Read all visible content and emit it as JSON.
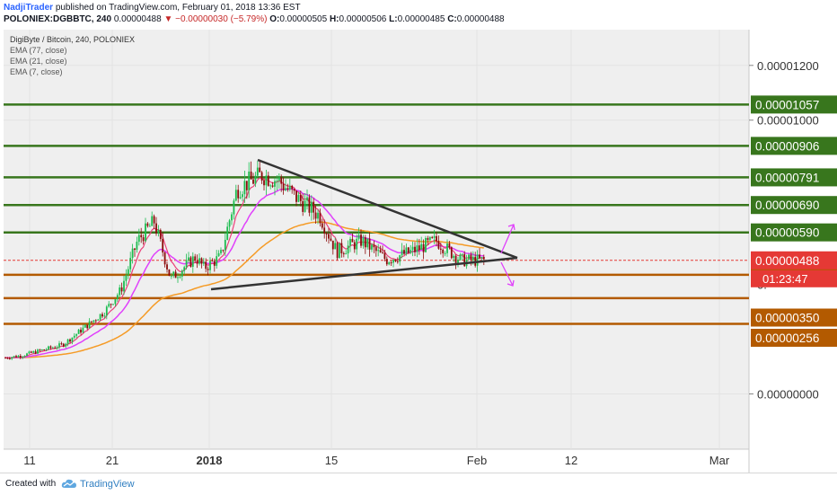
{
  "header": {
    "author": "NadjiTrader",
    "published": "published on TradingView.com, February 01, 2018 13:36 EST",
    "symbol": "POLONIEX:DGBBTC, 240",
    "last": "0.00000488",
    "change": "▼ −0.00000030 (−5.79%)",
    "o_label": "O:",
    "o_value": "0.00000505",
    "h_label": "H:",
    "h_value": "0.00000506",
    "l_label": "L:",
    "l_value": "0.00000485",
    "c_label": "C:",
    "c_value": "0.00000488"
  },
  "legend": {
    "title": "DigiByte / Bitcoin, 240, POLONIEX",
    "ema77": "EMA (77, close)",
    "ema21": "EMA (21, close)",
    "ema7": "EMA (7, close)"
  },
  "footer": {
    "created_with": "Created with",
    "brand": "TradingView"
  },
  "colors": {
    "background": "#efefef",
    "green_level": "#38761d",
    "brown_level": "#b35a00",
    "price_line": "#e53935",
    "ema77": "#f59b26",
    "ema21": "#e040fb",
    "ema7": "#ec407a",
    "trendline": "#333333",
    "up_candle": "#1bbc4f",
    "down_candle": "#8b0a0a",
    "arrows": "#e040fb"
  },
  "chart_data": {
    "type": "candlestick",
    "title": "DigiByte / Bitcoin, 240, POLONIEX",
    "y_axis_ticks": [
      "0.00001200",
      "0.00001000",
      "0.00000000"
    ],
    "x_axis_ticks": [
      "11",
      "21",
      "2018",
      "15",
      "Feb",
      "12",
      "Mar"
    ],
    "horizontal_levels": [
      {
        "label": "0.00001057",
        "value": 1.057e-05,
        "color": "green"
      },
      {
        "label": "0.00000906",
        "value": 9.06e-06,
        "color": "green"
      },
      {
        "label": "0.00000791",
        "value": 7.91e-06,
        "color": "green"
      },
      {
        "label": "0.00000690",
        "value": 6.9e-06,
        "color": "green"
      },
      {
        "label": "0.00000590",
        "value": 5.9e-06,
        "color": "green"
      },
      {
        "label": "0.00000435",
        "value": 4.35e-06,
        "color": "brown"
      },
      {
        "label": "0.00000350",
        "value": 3.5e-06,
        "color": "brown"
      },
      {
        "label": "0.00000256",
        "value": 2.56e-06,
        "color": "brown"
      }
    ],
    "current_price": {
      "label": "0.00000488",
      "value": 4.88e-06
    },
    "countdown": "01:23:47",
    "approximate_close_path": [
      {
        "date": "2017-12-05",
        "value": 1.2e-06
      },
      {
        "date": "2017-12-10",
        "value": 1.4e-06
      },
      {
        "date": "2017-12-15",
        "value": 1.8e-06
      },
      {
        "date": "2017-12-20",
        "value": 3e-06
      },
      {
        "date": "2017-12-22",
        "value": 3.8e-06
      },
      {
        "date": "2017-12-24",
        "value": 5.6e-06
      },
      {
        "date": "2017-12-26",
        "value": 6.3e-06
      },
      {
        "date": "2017-12-28",
        "value": 4.2e-06
      },
      {
        "date": "2017-12-31",
        "value": 5e-06
      },
      {
        "date": "2018-01-01",
        "value": 4.6e-06
      },
      {
        "date": "2018-01-03",
        "value": 5e-06
      },
      {
        "date": "2018-01-05",
        "value": 7.5e-06
      },
      {
        "date": "2018-01-08",
        "value": 8e-06
      },
      {
        "date": "2018-01-10",
        "value": 7.8e-06
      },
      {
        "date": "2018-01-12",
        "value": 7.2e-06
      },
      {
        "date": "2018-01-15",
        "value": 6.5e-06
      },
      {
        "date": "2018-01-17",
        "value": 5.2e-06
      },
      {
        "date": "2018-01-20",
        "value": 5.6e-06
      },
      {
        "date": "2018-01-23",
        "value": 4.9e-06
      },
      {
        "date": "2018-01-26",
        "value": 5.2e-06
      },
      {
        "date": "2018-01-29",
        "value": 5.6e-06
      },
      {
        "date": "2018-02-01",
        "value": 4.88e-06
      }
    ]
  }
}
